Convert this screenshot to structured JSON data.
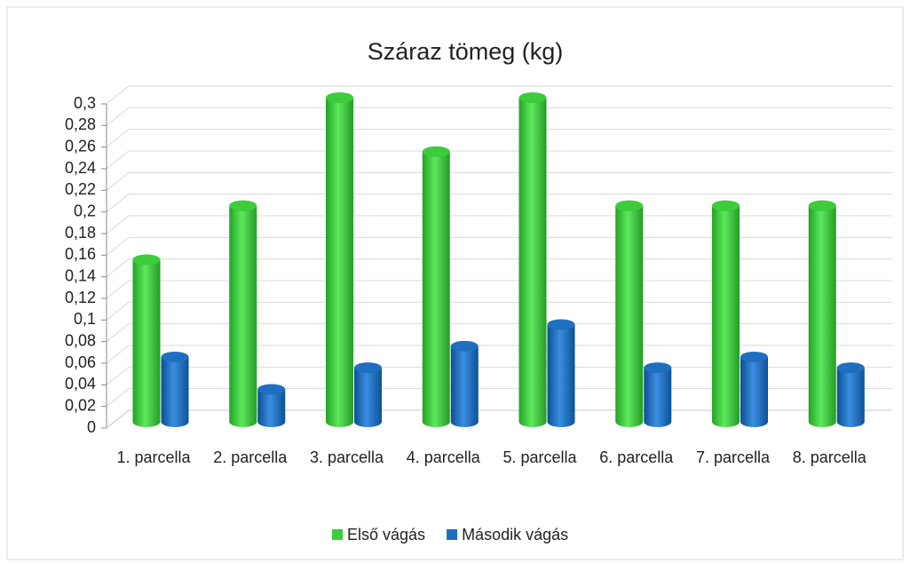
{
  "chart_data": {
    "type": "bar3d",
    "title": "Száraz tömeg (kg)",
    "categories": [
      "1. parcella",
      "2. parcella",
      "3. parcella",
      "4. parcella",
      "5. parcella",
      "6. parcella",
      "7. parcella",
      "8. parcella"
    ],
    "series": [
      {
        "name": "Első vágás",
        "color": "#3ccc3c",
        "values": [
          0.15,
          0.2,
          0.3,
          0.25,
          0.3,
          0.2,
          0.2,
          0.2
        ]
      },
      {
        "name": "Második vágás",
        "color": "#1f6fc0",
        "values": [
          0.06,
          0.03,
          0.05,
          0.07,
          0.09,
          0.05,
          0.06,
          0.05
        ]
      }
    ],
    "ylim": [
      0,
      0.3
    ],
    "yticks": [
      0,
      {
        "value": 0.02,
        "label": "0,02"
      },
      {
        "value": 0.04,
        "label": "0,04"
      },
      {
        "value": 0.06,
        "label": "0,06"
      },
      {
        "value": 0.08,
        "label": "0,08"
      },
      {
        "value": 0.1,
        "label": "0,1"
      },
      {
        "value": 0.12,
        "label": "0,12"
      },
      {
        "value": 0.14,
        "label": "0,14"
      },
      {
        "value": 0.16,
        "label": "0,16"
      },
      {
        "value": 0.18,
        "label": "0,18"
      },
      {
        "value": 0.2,
        "label": "0,2"
      },
      {
        "value": 0.22,
        "label": "0,22"
      },
      {
        "value": 0.24,
        "label": "0,24"
      },
      {
        "value": 0.26,
        "label": "0,26"
      },
      {
        "value": 0.28,
        "label": "0,28"
      },
      {
        "value": 0.3,
        "label": "0,3"
      }
    ],
    "grid": true,
    "legend": "bottom"
  }
}
